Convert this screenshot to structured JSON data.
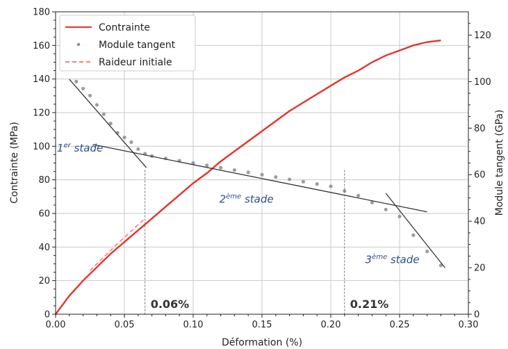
{
  "chart_data": {
    "type": "line",
    "xlabel": "Déformation (%)",
    "ylabel_left": "Contrainte (MPa)",
    "ylabel_right": "Module tangent (GPa)",
    "xlim": [
      0.0,
      0.3
    ],
    "ylim_left": [
      0,
      180
    ],
    "ylim_right": [
      0,
      130
    ],
    "x_ticks": [
      "0.00",
      "0.05",
      "0.10",
      "0.15",
      "0.20",
      "0.25",
      "0.30"
    ],
    "y_ticks_left": [
      "0",
      "20",
      "40",
      "60",
      "80",
      "100",
      "120",
      "140",
      "160",
      "180"
    ],
    "y_ticks_right": [
      "0",
      "20",
      "40",
      "60",
      "80",
      "100",
      "120"
    ],
    "grid": true,
    "legend_position": "top-left",
    "colors": {
      "contrainte": "#e8312b",
      "module": "#8c8c8c",
      "raideur": "#f08080",
      "fit": "#333333",
      "stage_text": "#2e4f8a"
    },
    "series": [
      {
        "name": "Contrainte",
        "style": "solid",
        "axis": "left",
        "x": [
          0.0,
          0.01,
          0.02,
          0.03,
          0.04,
          0.05,
          0.06,
          0.07,
          0.08,
          0.09,
          0.1,
          0.11,
          0.12,
          0.13,
          0.14,
          0.15,
          0.16,
          0.17,
          0.18,
          0.19,
          0.2,
          0.21,
          0.22,
          0.23,
          0.24,
          0.25,
          0.26,
          0.27,
          0.28
        ],
        "values": [
          0,
          11,
          20,
          28,
          36,
          43,
          50,
          57,
          64,
          71,
          78,
          84,
          91,
          97,
          103,
          109,
          115,
          121,
          126,
          131,
          136,
          141,
          145,
          150,
          154,
          157,
          160,
          162,
          163
        ]
      },
      {
        "name": "Module tangent",
        "style": "points",
        "axis": "right",
        "x": [
          0.015,
          0.02,
          0.025,
          0.03,
          0.035,
          0.04,
          0.045,
          0.05,
          0.055,
          0.06,
          0.065,
          0.07,
          0.08,
          0.09,
          0.1,
          0.11,
          0.12,
          0.13,
          0.14,
          0.15,
          0.16,
          0.17,
          0.18,
          0.19,
          0.2,
          0.21,
          0.22,
          0.23,
          0.24,
          0.25,
          0.26,
          0.27,
          0.28
        ],
        "values": [
          100,
          97,
          94,
          90,
          86,
          82,
          78,
          76,
          74,
          71,
          69,
          68,
          67,
          66,
          65,
          64,
          63,
          62,
          61,
          60,
          59,
          58,
          57,
          56,
          55,
          53,
          51,
          48,
          45,
          42,
          34,
          27,
          21
        ]
      },
      {
        "name": "Raideur initiale",
        "style": "dashed",
        "axis": "left",
        "x": [
          0.025,
          0.045,
          0.065
        ],
        "values": [
          26,
          42,
          57
        ]
      }
    ],
    "fit_lines": [
      {
        "axis": "right",
        "x": [
          0.01,
          0.066
        ],
        "values": [
          101,
          63
        ]
      },
      {
        "axis": "right",
        "x": [
          0.027,
          0.27
        ],
        "values": [
          73,
          44
        ]
      },
      {
        "axis": "right",
        "x": [
          0.24,
          0.283
        ],
        "values": [
          52,
          20
        ]
      }
    ],
    "markers": [
      {
        "x": 0.065,
        "label": "0.06%"
      },
      {
        "x": 0.21,
        "label": "0.21%"
      }
    ],
    "stage_labels": [
      {
        "base": "1",
        "sup": "er",
        "rest": " stade",
        "x": 0.001,
        "y": 70
      },
      {
        "base": "2",
        "sup": "ème",
        "rest": " stade",
        "x": 0.119,
        "y": 48
      },
      {
        "base": "3",
        "sup": "ème",
        "rest": " stade",
        "x": 0.225,
        "y": 22
      }
    ]
  }
}
